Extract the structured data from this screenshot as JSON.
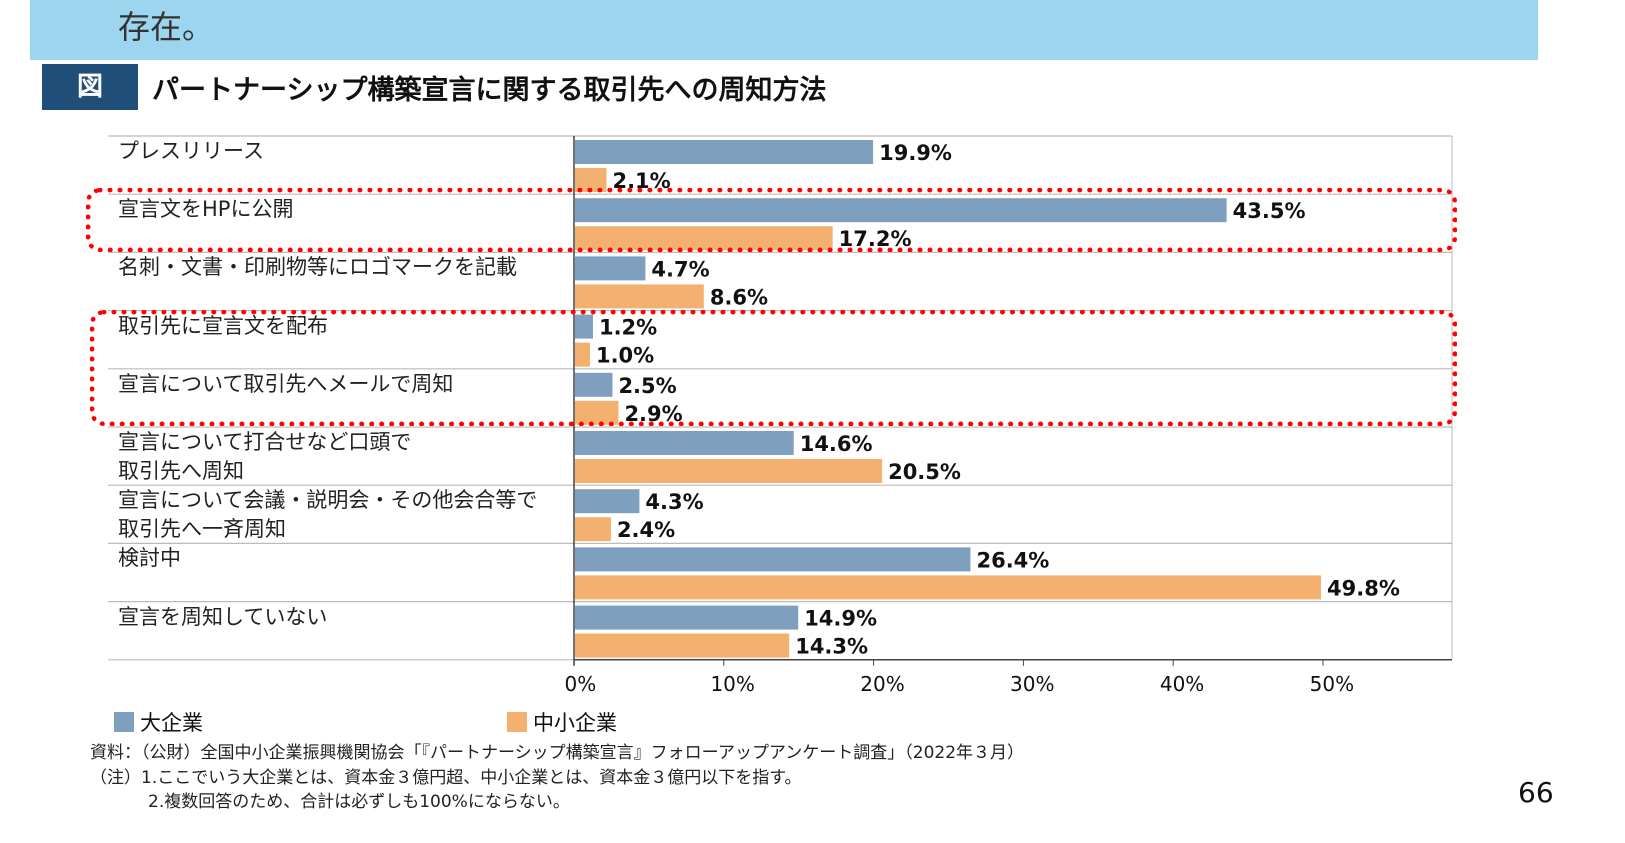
{
  "banner": {
    "text": "存在。"
  },
  "figure": {
    "tag": "図",
    "title": "パートナーシップ構築宣言に関する取引先への周知方法"
  },
  "chart_data": {
    "type": "bar",
    "orientation": "horizontal",
    "categories": [
      "プレスリリース",
      "宣言文をHPに公開",
      "名刺・文書・印刷物等にロゴマークを記載",
      "取引先に宣言文を配布",
      "宣言について取引先へメールで周知",
      "宣言について打合せなど口頭で\n取引先へ周知",
      "宣言について会議・説明会・その他会合等で\n取引先へ一斉周知",
      "検討中",
      "宣言を周知していない"
    ],
    "series": [
      {
        "name": "大企業",
        "color": "#7f9fbf",
        "values": [
          19.9,
          43.5,
          4.7,
          1.2,
          2.5,
          14.6,
          4.3,
          26.4,
          14.9
        ]
      },
      {
        "name": "中小企業",
        "color": "#f4b06e",
        "values": [
          2.1,
          17.2,
          8.6,
          1.0,
          2.9,
          20.5,
          2.4,
          49.8,
          14.3
        ]
      }
    ],
    "xlim": [
      0,
      50
    ],
    "xticks": [
      "0%",
      "10%",
      "20%",
      "30%",
      "40%",
      "50%"
    ],
    "legend": "bottom",
    "highlight_color": "#ff0000"
  },
  "notes": [
    "資料：（公財）全国中小企業振興機関協会「『パートナーシップ構築宣言』フォローアップアンケート調査」（2022年３月）",
    "（注）1.ここでいう大企業とは、資本金３億円超、中小企業とは、資本金３億円以下を指す。",
    "2.複数回答のため、合計は必ずしも100%にならない。"
  ],
  "page_number": "66"
}
